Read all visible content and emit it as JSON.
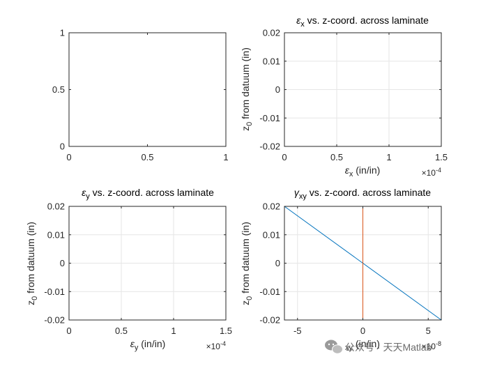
{
  "chart_data": [
    {
      "id": "p1",
      "type": "line",
      "title": "",
      "title_sub": "",
      "title_rest": "",
      "xlabel": "",
      "xlabel_sub": "",
      "xlabel_rest": "",
      "ylabel": "",
      "ylabel_sub": "",
      "ylabel_rest": "",
      "xlim": [
        0,
        1
      ],
      "ylim": [
        0,
        1
      ],
      "xticks": [
        0,
        0.5,
        1
      ],
      "xtick_labels": [
        "0",
        "0.5",
        "1"
      ],
      "yticks": [
        0,
        0.5,
        1
      ],
      "ytick_labels": [
        "0",
        "0.5",
        "1"
      ],
      "x_exponent": "",
      "grid": false,
      "series": []
    },
    {
      "id": "p2",
      "type": "line",
      "title": "ε",
      "title_sub": "x",
      "title_rest": " vs. z-coord. across laminate",
      "xlabel": "ε",
      "xlabel_sub": "x",
      "xlabel_rest": " (in/in)",
      "ylabel": "z",
      "ylabel_sub": "0",
      "ylabel_rest": " from datuum (in)",
      "xlim": [
        0,
        1.5
      ],
      "ylim": [
        -0.02,
        0.02
      ],
      "xticks": [
        0,
        0.5,
        1,
        1.5
      ],
      "xtick_labels": [
        "0",
        "0.5",
        "1",
        "1.5"
      ],
      "yticks": [
        -0.02,
        -0.01,
        0,
        0.01,
        0.02
      ],
      "ytick_labels": [
        "-0.02",
        "-0.01",
        "0",
        "0.01",
        "0.02"
      ],
      "x_exponent": "-4",
      "grid": true,
      "series": [
        {
          "color": "#0072bd",
          "x": [
            1.5,
            1.5
          ],
          "y": [
            -0.02,
            0.02
          ]
        }
      ]
    },
    {
      "id": "p3",
      "type": "line",
      "title": "ε",
      "title_sub": "y",
      "title_rest": " vs. z-coord. across laminate",
      "xlabel": "ε",
      "xlabel_sub": "y",
      "xlabel_rest": " (in/in)",
      "ylabel": "z",
      "ylabel_sub": "0",
      "ylabel_rest": " from datuum (in)",
      "xlim": [
        0,
        1.5
      ],
      "ylim": [
        -0.02,
        0.02
      ],
      "xticks": [
        0,
        0.5,
        1,
        1.5
      ],
      "xtick_labels": [
        "0",
        "0.5",
        "1",
        "1.5"
      ],
      "yticks": [
        -0.02,
        -0.01,
        0,
        0.01,
        0.02
      ],
      "ytick_labels": [
        "-0.02",
        "-0.01",
        "0",
        "0.01",
        "0.02"
      ],
      "x_exponent": "-4",
      "grid": true,
      "series": [
        {
          "color": "#0072bd",
          "x": [
            1.5,
            1.5
          ],
          "y": [
            -0.02,
            0.02
          ]
        }
      ]
    },
    {
      "id": "p4",
      "type": "line",
      "title": "γ",
      "title_sub": "xy",
      "title_rest": " vs. z-coord. across laminate",
      "xlabel": "",
      "xlabel_sub": "xy",
      "xlabel_rest": " (in/in)",
      "ylabel": "z",
      "ylabel_sub": "0",
      "ylabel_rest": " from datuum (in)",
      "xlim": [
        -6,
        6
      ],
      "ylim": [
        -0.02,
        0.02
      ],
      "xticks": [
        -5,
        0,
        5
      ],
      "xtick_labels": [
        "-5",
        "0",
        "5"
      ],
      "yticks": [
        -0.02,
        -0.01,
        0,
        0.01,
        0.02
      ],
      "ytick_labels": [
        "-0.02",
        "-0.01",
        "0",
        "0.01",
        "0.02"
      ],
      "x_exponent": "-8",
      "grid": true,
      "series": [
        {
          "color": "#0072bd",
          "x": [
            -6,
            6
          ],
          "y": [
            0.02,
            -0.02
          ]
        },
        {
          "color": "#d95319",
          "x": [
            0,
            0
          ],
          "y": [
            -0.02,
            0.02
          ]
        }
      ]
    }
  ],
  "watermark": {
    "icon": "wechat-icon",
    "text": "公众号 · 天天Matlab"
  }
}
